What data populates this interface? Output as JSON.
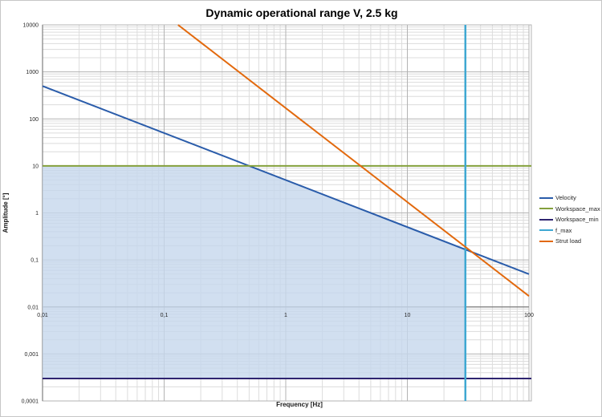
{
  "window": {
    "background": "#ffffff",
    "border_color": "#c6c6c6"
  },
  "title": "Dynamic operational range V, 2.5 kg",
  "axes": {
    "x_title": "Frequency [Hz]",
    "y_title": "Amplitude [°]"
  },
  "legend": {
    "position": "right",
    "entries": [
      {
        "label": "Velocity",
        "color": "#2a5caa"
      },
      {
        "label": "Workspace_max",
        "color": "#84a03c"
      },
      {
        "label": "Workspace_min",
        "color": "#2e2470"
      },
      {
        "label": "f_max",
        "color": "#3fa8d2"
      },
      {
        "label": "Strut load",
        "color": "#e2690d"
      }
    ]
  },
  "chart_data": {
    "type": "line",
    "title": "Dynamic operational range V, 2.5 kg",
    "xlabel": "Frequency [Hz]",
    "ylabel": "Amplitude [°]",
    "x_scale": "log",
    "y_scale": "log",
    "xlim": [
      0.01,
      100
    ],
    "ylim": [
      0.0001,
      10000
    ],
    "x_ticks": [
      {
        "value": 0.01,
        "label": "0,01"
      },
      {
        "value": 0.1,
        "label": "0,1"
      },
      {
        "value": 1,
        "label": "1"
      },
      {
        "value": 10,
        "label": "10"
      },
      {
        "value": 100,
        "label": "100"
      }
    ],
    "y_ticks": [
      {
        "value": 10000,
        "label": "10000"
      },
      {
        "value": 1000,
        "label": "1000"
      },
      {
        "value": 100,
        "label": "100"
      },
      {
        "value": 10,
        "label": "10"
      },
      {
        "value": 1,
        "label": "1"
      },
      {
        "value": 0.1,
        "label": "0,1"
      },
      {
        "value": 0.01,
        "label": "0,01"
      },
      {
        "value": 0.001,
        "label": "0,001"
      },
      {
        "value": 0.0001,
        "label": "0,0001"
      }
    ],
    "grid": "log major and minor gridlines on both axes",
    "x_axis_crosses_at_y": 0.01,
    "series": [
      {
        "name": "Velocity",
        "kind": "line",
        "color": "#2a5caa",
        "slope_decades": -1,
        "points": [
          [
            0.01,
            500
          ],
          [
            100,
            0.05
          ]
        ]
      },
      {
        "name": "Workspace_max",
        "kind": "hline",
        "color": "#84a03c",
        "value": 10
      },
      {
        "name": "Workspace_min",
        "kind": "hline",
        "color": "#2e2470",
        "value": 0.0003
      },
      {
        "name": "f_max",
        "kind": "vline",
        "color": "#3fa8d2",
        "value": 30
      },
      {
        "name": "Strut load",
        "kind": "line",
        "color": "#e2690d",
        "slope_decades": -2,
        "points": [
          [
            0.13,
            10000
          ],
          [
            100,
            0.017
          ]
        ]
      }
    ],
    "shaded_region": {
      "name": "dynamic operational range",
      "fill": "#c5d7ec",
      "opacity": 0.8,
      "points": [
        [
          0.01,
          10
        ],
        [
          0.5,
          10
        ],
        [
          30,
          0.1667
        ],
        [
          30,
          0.0003
        ],
        [
          0.01,
          0.0003
        ]
      ]
    }
  }
}
